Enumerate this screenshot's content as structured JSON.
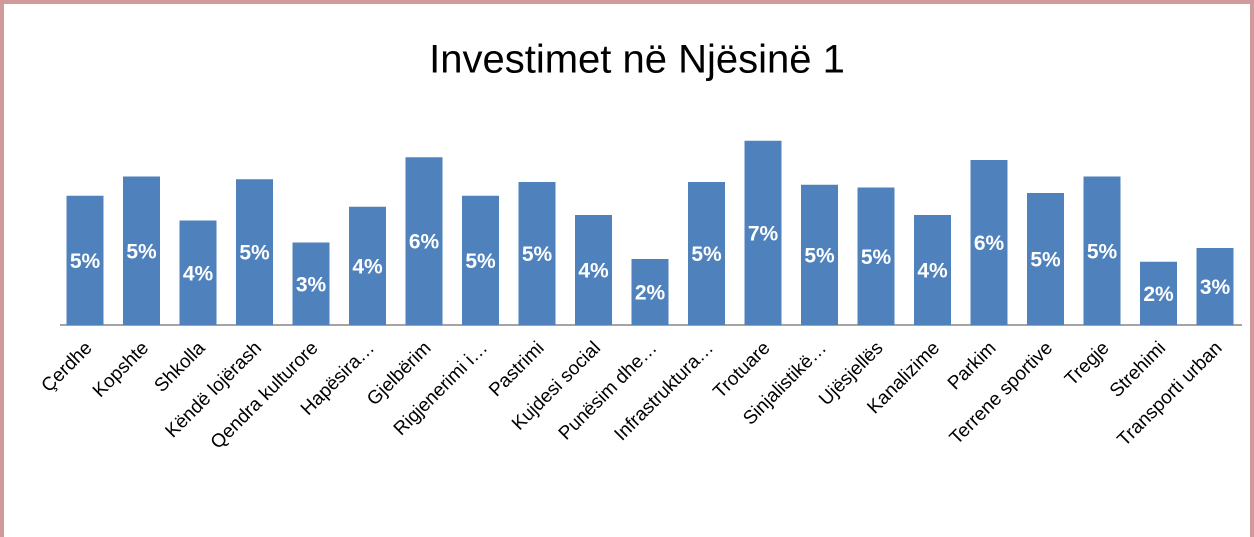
{
  "chart_data": {
    "type": "bar",
    "title": "Investimet në Njësinë 1",
    "categories": [
      "Çerdhe",
      "Kopshte",
      "Shkolla",
      "Këndë lojërash",
      "Qendra kulturore",
      "Hapësira…",
      "Gjelbërim",
      "Rigjenerimi i…",
      "Pastrimi",
      "Kujdesi social",
      "Punësim dhe…",
      "Infrastruktura…",
      "Trotuare",
      "Sinjalistikë…",
      "Ujësjellës",
      "Kanalizime",
      "Parkim",
      "Terrene sportive",
      "Tregje",
      "Strehimi",
      "Transporti urban"
    ],
    "values": [
      4.7,
      5.4,
      3.8,
      5.3,
      3.0,
      4.3,
      6.1,
      4.7,
      5.2,
      4.0,
      2.4,
      5.2,
      6.7,
      5.1,
      5.0,
      4.0,
      6.0,
      4.8,
      5.4,
      2.3,
      2.8
    ],
    "value_labels": [
      "5%",
      "5%",
      "4%",
      "5%",
      "3%",
      "4%",
      "6%",
      "5%",
      "5%",
      "4%",
      "2%",
      "5%",
      "7%",
      "5%",
      "5%",
      "4%",
      "6%",
      "5%",
      "5%",
      "2%",
      "3%"
    ],
    "color": "#4f81bd"
  }
}
